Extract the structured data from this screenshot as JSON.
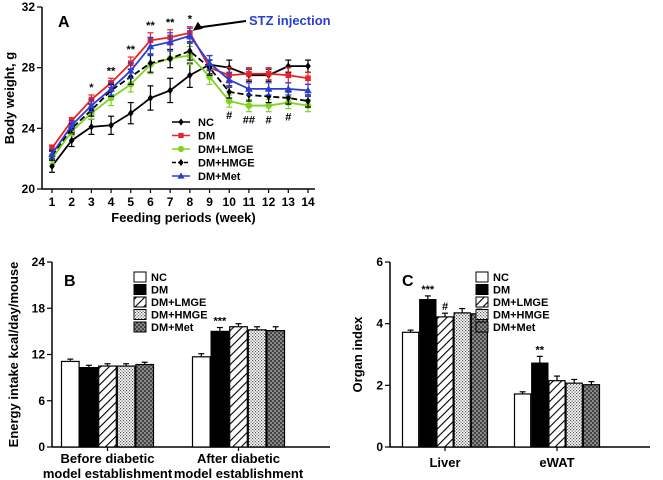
{
  "chart_data": [
    {
      "panel": "A",
      "type": "line",
      "xlabel": "Feeding periods (week)",
      "ylabel": "Body weight, g",
      "ylim": [
        20,
        32
      ],
      "yticks": [
        "20",
        "24",
        "28",
        "32"
      ],
      "x": [
        1,
        2,
        3,
        4,
        5,
        6,
        7,
        8,
        9,
        10,
        11,
        12,
        13,
        14
      ],
      "annotation": "STZ injection",
      "series": [
        {
          "name": "NC",
          "color": "#000000",
          "marker": "diamond",
          "dash": false,
          "values": [
            21.5,
            23.2,
            24.1,
            24.2,
            25.0,
            26.0,
            26.5,
            27.5,
            28.2,
            28.0,
            27.5,
            27.5,
            28.1,
            28.1
          ],
          "err": [
            0.4,
            0.4,
            0.5,
            0.6,
            0.7,
            0.8,
            0.8,
            0.8,
            0.6,
            0.5,
            0.4,
            0.4,
            0.4,
            0.4
          ]
        },
        {
          "name": "DM",
          "color": "#e8232a",
          "marker": "square",
          "dash": false,
          "values": [
            22.7,
            24.5,
            25.9,
            27.0,
            28.3,
            29.8,
            30.0,
            30.3,
            28.0,
            27.5,
            27.6,
            27.6,
            27.5,
            27.3
          ],
          "err": [
            0.2,
            0.2,
            0.3,
            0.3,
            0.4,
            0.5,
            0.5,
            0.4,
            0.5,
            0.5,
            0.4,
            0.4,
            0.5,
            0.4
          ]
        },
        {
          "name": "DM+LMGE",
          "color": "#7ed321",
          "marker": "circle",
          "dash": false,
          "values": [
            22.0,
            23.8,
            25.0,
            26.0,
            26.9,
            28.2,
            28.6,
            28.8,
            27.4,
            25.8,
            25.5,
            25.5,
            25.7,
            25.5
          ],
          "err": [
            0.3,
            0.3,
            0.4,
            0.5,
            0.5,
            0.6,
            0.6,
            0.6,
            0.5,
            0.4,
            0.4,
            0.4,
            0.4,
            0.4
          ]
        },
        {
          "name": "DM+HMGE",
          "color": "#000000",
          "marker": "diamond",
          "dash": true,
          "values": [
            22.2,
            24.0,
            25.2,
            26.5,
            27.4,
            28.3,
            28.6,
            29.1,
            28.0,
            26.4,
            26.2,
            26.1,
            26.0,
            25.8
          ],
          "err": [
            0.3,
            0.3,
            0.4,
            0.4,
            0.5,
            0.6,
            0.6,
            0.6,
            0.5,
            0.4,
            0.4,
            0.4,
            0.4,
            0.4
          ]
        },
        {
          "name": "DM+Met",
          "color": "#2a3fd6",
          "marker": "triangle",
          "dash": false,
          "values": [
            22.3,
            24.2,
            25.5,
            26.6,
            27.8,
            29.4,
            29.7,
            30.1,
            28.3,
            27.2,
            26.6,
            26.6,
            26.6,
            26.5
          ],
          "err": [
            0.3,
            0.3,
            0.4,
            0.4,
            0.5,
            0.6,
            0.6,
            0.5,
            0.5,
            0.5,
            0.4,
            0.4,
            0.4,
            0.4
          ]
        }
      ],
      "stars": [
        {
          "x": 3,
          "label": "*"
        },
        {
          "x": 4,
          "label": "**"
        },
        {
          "x": 5,
          "label": "**"
        },
        {
          "x": 6,
          "label": "**"
        },
        {
          "x": 7,
          "label": "**"
        },
        {
          "x": 8,
          "label": "*"
        }
      ],
      "hashes": [
        {
          "x": 10,
          "label": "#"
        },
        {
          "x": 11,
          "label": "##"
        },
        {
          "x": 12,
          "label": "#"
        },
        {
          "x": 13,
          "label": "#"
        }
      ]
    },
    {
      "panel": "B",
      "type": "bar",
      "ylabel": "Energy intake kcal/day/mouse",
      "ylim": [
        0,
        24
      ],
      "yticks": [
        "0",
        "6",
        "12",
        "18",
        "24"
      ],
      "categories": [
        [
          "Before diabetic",
          "model establishment"
        ],
        [
          "After diabetic",
          "model establishment"
        ]
      ],
      "series": [
        {
          "name": "NC",
          "values": [
            11.1,
            11.7
          ],
          "err": [
            0.3,
            0.4
          ]
        },
        {
          "name": "DM",
          "values": [
            10.3,
            15.0
          ],
          "err": [
            0.3,
            0.5
          ]
        },
        {
          "name": "DM+LMGE",
          "values": [
            10.5,
            15.6
          ],
          "err": [
            0.3,
            0.4
          ]
        },
        {
          "name": "DM+HMGE",
          "values": [
            10.5,
            15.2
          ],
          "err": [
            0.3,
            0.4
          ]
        },
        {
          "name": "DM+Met",
          "values": [
            10.7,
            15.1
          ],
          "err": [
            0.3,
            0.5
          ]
        }
      ],
      "stars": [
        {
          "category": 1,
          "series": 1,
          "label": "***"
        }
      ]
    },
    {
      "panel": "C",
      "type": "bar",
      "ylabel": "Organ index",
      "ylim": [
        0,
        6
      ],
      "yticks": [
        "0",
        "2",
        "4",
        "6"
      ],
      "categories": [
        [
          "Liver"
        ],
        [
          "eWAT"
        ]
      ],
      "series": [
        {
          "name": "NC",
          "values": [
            3.72,
            1.72
          ],
          "err": [
            0.07,
            0.07
          ]
        },
        {
          "name": "DM",
          "values": [
            4.78,
            2.72
          ],
          "err": [
            0.12,
            0.22
          ]
        },
        {
          "name": "DM+LMGE",
          "values": [
            4.22,
            2.15
          ],
          "err": [
            0.12,
            0.15
          ]
        },
        {
          "name": "DM+HMGE",
          "values": [
            4.35,
            2.07
          ],
          "err": [
            0.14,
            0.12
          ]
        },
        {
          "name": "DM+Met",
          "values": [
            4.32,
            2.02
          ],
          "err": [
            0.15,
            0.1
          ]
        }
      ],
      "stars": [
        {
          "category": 0,
          "series": 1,
          "label": "***"
        },
        {
          "category": 0,
          "series": 2,
          "label": "#"
        },
        {
          "category": 1,
          "series": 1,
          "label": "**"
        }
      ]
    }
  ]
}
